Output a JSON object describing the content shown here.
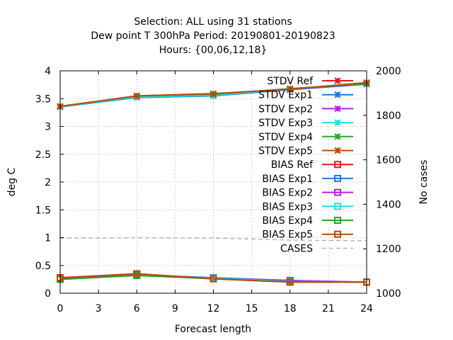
{
  "chart_data": {
    "type": "line",
    "title_lines": [
      "Selection: ALL using    31 stations",
      "Dew point T 300hPa   Period: 20190801-20190823",
      "Hours: {00,06,12,18}"
    ],
    "xlabel": "Forecast length",
    "ylabel": "deg C",
    "y2label": "No cases",
    "x_ticks": [
      0,
      3,
      6,
      9,
      12,
      15,
      18,
      21,
      24
    ],
    "y_ticks": [
      0,
      0.5,
      1,
      1.5,
      2,
      2.5,
      3,
      3.5,
      4
    ],
    "y2_ticks": [
      1000,
      1200,
      1400,
      1600,
      1800,
      2000
    ],
    "xlim": [
      0,
      24
    ],
    "ylim": [
      0,
      4
    ],
    "y2lim": [
      1000,
      2000
    ],
    "grid": true,
    "legend_position": "top-right inside",
    "x": [
      0,
      6,
      12,
      18,
      24
    ],
    "series": [
      {
        "name": "STDV Ref",
        "color": "#e41a1c",
        "marker": "x-star",
        "values": [
          3.36,
          3.55,
          3.58,
          3.66,
          3.78
        ]
      },
      {
        "name": "STDV Exp1",
        "color": "#1f78d4",
        "marker": "x-star",
        "values": [
          3.35,
          3.52,
          3.55,
          3.66,
          3.76
        ]
      },
      {
        "name": "STDV Exp2",
        "color": "#b020e0",
        "marker": "x-star",
        "values": [
          3.36,
          3.54,
          3.57,
          3.67,
          3.77
        ]
      },
      {
        "name": "STDV Exp3",
        "color": "#19e3e3",
        "marker": "x-star",
        "values": [
          3.35,
          3.53,
          3.56,
          3.67,
          3.78
        ]
      },
      {
        "name": "STDV Exp4",
        "color": "#2aa52a",
        "marker": "x-star",
        "values": [
          3.36,
          3.55,
          3.58,
          3.68,
          3.77
        ]
      },
      {
        "name": "STDV Exp5",
        "color": "#b84a0a",
        "marker": "x-star",
        "values": [
          3.36,
          3.55,
          3.59,
          3.67,
          3.79
        ]
      },
      {
        "name": "BIAS Ref",
        "color": "#e41a1c",
        "marker": "square",
        "values": [
          0.28,
          0.35,
          0.26,
          0.21,
          0.2
        ]
      },
      {
        "name": "BIAS Exp1",
        "color": "#1f78d4",
        "marker": "square",
        "values": [
          0.26,
          0.33,
          0.28,
          0.23,
          0.2
        ]
      },
      {
        "name": "BIAS Exp2",
        "color": "#b020e0",
        "marker": "square",
        "values": [
          0.26,
          0.33,
          0.27,
          0.23,
          0.2
        ]
      },
      {
        "name": "BIAS Exp3",
        "color": "#19e3e3",
        "marker": "square",
        "values": [
          0.25,
          0.32,
          0.27,
          0.21,
          0.2
        ]
      },
      {
        "name": "BIAS Exp4",
        "color": "#2aa52a",
        "marker": "square",
        "values": [
          0.25,
          0.32,
          0.26,
          0.2,
          0.2
        ]
      },
      {
        "name": "BIAS Exp5",
        "color": "#b84a0a",
        "marker": "square",
        "values": [
          0.27,
          0.35,
          0.26,
          0.2,
          0.2
        ]
      },
      {
        "name": "CASES",
        "color": "#999999",
        "marker": "none",
        "dashed": true,
        "axis": "y2",
        "x": [
          0,
          6,
          12,
          18,
          24
        ],
        "values": [
          1248,
          1249,
          1248,
          1239,
          1236
        ]
      }
    ]
  }
}
